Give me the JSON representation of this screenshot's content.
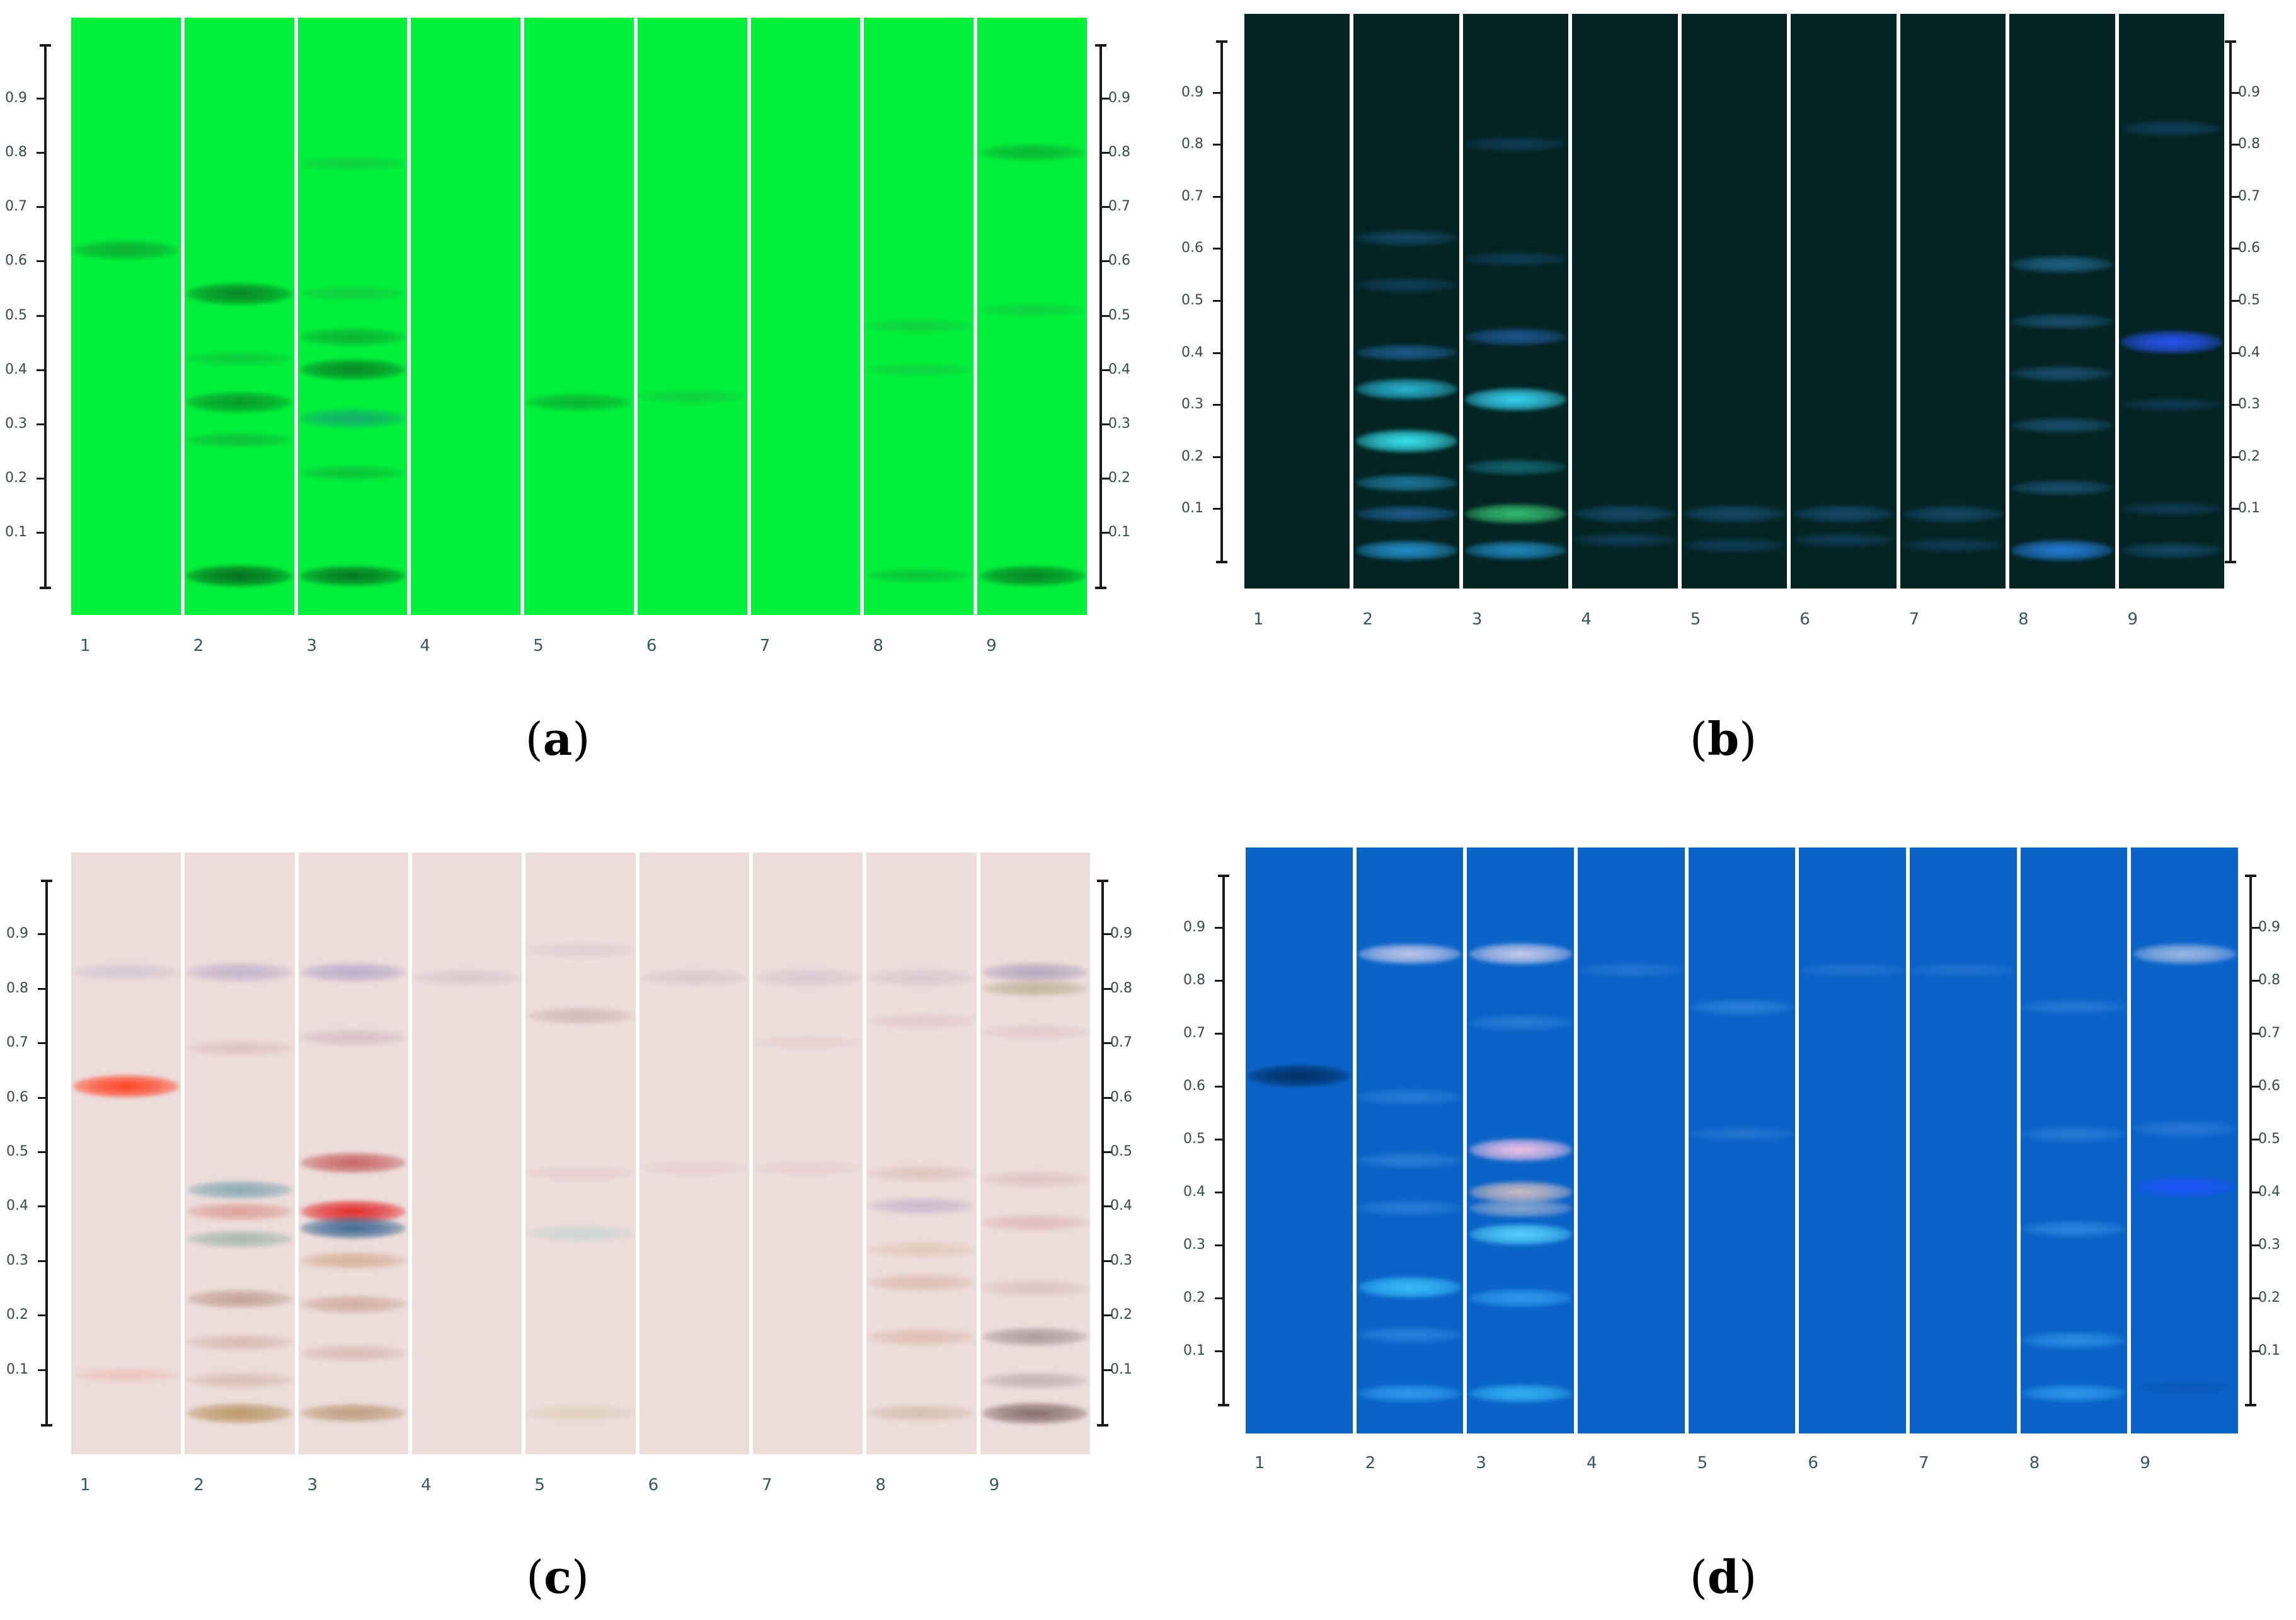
{
  "figure": {
    "lane_numbers": [
      "1",
      "2",
      "3",
      "4",
      "5",
      "6",
      "7",
      "8",
      "9"
    ],
    "rf_ticks": [
      "0.1",
      "0.2",
      "0.3",
      "0.4",
      "0.5",
      "0.6",
      "0.7",
      "0.8",
      "0.9"
    ],
    "panels": [
      {
        "id": "a",
        "caption_open": "(",
        "caption_letter": "a",
        "caption_close": ")",
        "plate_bg": "#00f03c",
        "band_mode": "dark",
        "lanes": [
          [
            {
              "rf": 0.62,
              "color": "#0f9a2e",
              "strength": 0.7
            }
          ],
          [
            {
              "rf": 0.54,
              "color": "#0a7a24",
              "strength": 0.95
            },
            {
              "rf": 0.42,
              "color": "#1aa83a",
              "strength": 0.3
            },
            {
              "rf": 0.34,
              "color": "#0a8a28",
              "strength": 0.85
            },
            {
              "rf": 0.27,
              "color": "#16a336",
              "strength": 0.45
            },
            {
              "rf": 0.02,
              "color": "#0a5a1c",
              "strength": 0.9
            }
          ],
          [
            {
              "rf": 0.78,
              "color": "#20b042",
              "strength": 0.3
            },
            {
              "rf": 0.54,
              "color": "#20b042",
              "strength": 0.35
            },
            {
              "rf": 0.46,
              "color": "#0f9a2e",
              "strength": 0.6
            },
            {
              "rf": 0.4,
              "color": "#0a7a24",
              "strength": 0.9
            },
            {
              "rf": 0.31,
              "color": "#1a9a7a",
              "strength": 0.7
            },
            {
              "rf": 0.21,
              "color": "#16a336",
              "strength": 0.4
            },
            {
              "rf": 0.02,
              "color": "#0a5a1c",
              "strength": 0.8
            }
          ],
          [],
          [
            {
              "rf": 0.34,
              "color": "#0f9a2e",
              "strength": 0.6
            }
          ],
          [
            {
              "rf": 0.35,
              "color": "#20b042",
              "strength": 0.3
            }
          ],
          [],
          [
            {
              "rf": 0.48,
              "color": "#20b042",
              "strength": 0.3
            },
            {
              "rf": 0.4,
              "color": "#20b042",
              "strength": 0.25
            },
            {
              "rf": 0.02,
              "color": "#169a34",
              "strength": 0.3
            }
          ],
          [
            {
              "rf": 0.8,
              "color": "#0f9a2e",
              "strength": 0.55
            },
            {
              "rf": 0.51,
              "color": "#20b042",
              "strength": 0.25
            },
            {
              "rf": 0.02,
              "color": "#0a6a20",
              "strength": 0.8
            }
          ]
        ]
      },
      {
        "id": "b",
        "caption_open": "(",
        "caption_letter": "b",
        "caption_close": ")",
        "plate_bg": "#032423",
        "band_mode": "light",
        "lanes": [
          [],
          [
            {
              "rf": 0.62,
              "color": "#1e5a8a",
              "strength": 0.5
            },
            {
              "rf": 0.53,
              "color": "#1a4f80",
              "strength": 0.4
            },
            {
              "rf": 0.4,
              "color": "#2a7bc8",
              "strength": 0.5
            },
            {
              "rf": 0.33,
              "color": "#2ec8e8",
              "strength": 0.9
            },
            {
              "rf": 0.23,
              "color": "#3af0ff",
              "strength": 1.0
            },
            {
              "rf": 0.15,
              "color": "#2a9ad0",
              "strength": 0.6
            },
            {
              "rf": 0.09,
              "color": "#2a7bc8",
              "strength": 0.5
            },
            {
              "rf": 0.02,
              "color": "#2aa8f0",
              "strength": 0.8
            }
          ],
          [
            {
              "rf": 0.8,
              "color": "#1a4f80",
              "strength": 0.35
            },
            {
              "rf": 0.58,
              "color": "#1a4f80",
              "strength": 0.35
            },
            {
              "rf": 0.43,
              "color": "#2a6ac0",
              "strength": 0.6
            },
            {
              "rf": 0.31,
              "color": "#3ae0ff",
              "strength": 1.0
            },
            {
              "rf": 0.18,
              "color": "#1a8a9a",
              "strength": 0.5
            },
            {
              "rf": 0.09,
              "color": "#40e080",
              "strength": 0.8
            },
            {
              "rf": 0.02,
              "color": "#2aa8f0",
              "strength": 0.7
            }
          ],
          [
            {
              "rf": 0.09,
              "color": "#1e5a8a",
              "strength": 0.6
            },
            {
              "rf": 0.04,
              "color": "#1a4f80",
              "strength": 0.4
            }
          ],
          [
            {
              "rf": 0.09,
              "color": "#1e5a8a",
              "strength": 0.6
            },
            {
              "rf": 0.03,
              "color": "#1a4f80",
              "strength": 0.4
            }
          ],
          [
            {
              "rf": 0.09,
              "color": "#1e5a8a",
              "strength": 0.6
            },
            {
              "rf": 0.04,
              "color": "#1a4f80",
              "strength": 0.4
            }
          ],
          [
            {
              "rf": 0.09,
              "color": "#1e5a8a",
              "strength": 0.55
            },
            {
              "rf": 0.03,
              "color": "#1a4f80",
              "strength": 0.35
            }
          ],
          [
            {
              "rf": 0.57,
              "color": "#2a7bb0",
              "strength": 0.6
            },
            {
              "rf": 0.46,
              "color": "#2a6aa0",
              "strength": 0.45
            },
            {
              "rf": 0.36,
              "color": "#2a6aa0",
              "strength": 0.45
            },
            {
              "rf": 0.26,
              "color": "#2a6aa0",
              "strength": 0.45
            },
            {
              "rf": 0.14,
              "color": "#2a6aa0",
              "strength": 0.45
            },
            {
              "rf": 0.02,
              "color": "#2a88f0",
              "strength": 0.9
            }
          ],
          [
            {
              "rf": 0.83,
              "color": "#1a4f80",
              "strength": 0.45
            },
            {
              "rf": 0.42,
              "color": "#2a58ff",
              "strength": 1.0
            },
            {
              "rf": 0.3,
              "color": "#1a4f80",
              "strength": 0.3
            },
            {
              "rf": 0.1,
              "color": "#1a4f80",
              "strength": 0.35
            },
            {
              "rf": 0.02,
              "color": "#1e5a8a",
              "strength": 0.5
            }
          ]
        ]
      },
      {
        "id": "c",
        "caption_open": "(",
        "caption_letter": "c",
        "caption_close": ")",
        "plate_bg": "#ecdcda",
        "band_mode": "dark",
        "lanes": [
          [
            {
              "rf": 0.83,
              "color": "#c8bcd0",
              "strength": 0.5
            },
            {
              "rf": 0.62,
              "color": "#ff3818",
              "strength": 1.0
            },
            {
              "rf": 0.09,
              "color": "#f0b0a0",
              "strength": 0.3
            }
          ],
          [
            {
              "rf": 0.83,
              "color": "#b8a8c8",
              "strength": 0.7
            },
            {
              "rf": 0.69,
              "color": "#d8b0b0",
              "strength": 0.4
            },
            {
              "rf": 0.43,
              "color": "#6a9aaa",
              "strength": 0.7
            },
            {
              "rf": 0.39,
              "color": "#d88880",
              "strength": 0.6
            },
            {
              "rf": 0.34,
              "color": "#8aaa9a",
              "strength": 0.6
            },
            {
              "rf": 0.23,
              "color": "#b89080",
              "strength": 0.7
            },
            {
              "rf": 0.15,
              "color": "#d0a8a0",
              "strength": 0.5
            },
            {
              "rf": 0.08,
              "color": "#d0b0a0",
              "strength": 0.5
            },
            {
              "rf": 0.02,
              "color": "#b08850",
              "strength": 0.8
            }
          ],
          [
            {
              "rf": 0.83,
              "color": "#b0a0c8",
              "strength": 0.75
            },
            {
              "rf": 0.71,
              "color": "#c8b0c0",
              "strength": 0.5
            },
            {
              "rf": 0.48,
              "color": "#c05050",
              "strength": 0.85
            },
            {
              "rf": 0.39,
              "color": "#e02020",
              "strength": 1.0
            },
            {
              "rf": 0.36,
              "color": "#2a5a8a",
              "strength": 0.9
            },
            {
              "rf": 0.3,
              "color": "#d0a080",
              "strength": 0.6
            },
            {
              "rf": 0.22,
              "color": "#c89888",
              "strength": 0.6
            },
            {
              "rf": 0.13,
              "color": "#d0a8a0",
              "strength": 0.5
            },
            {
              "rf": 0.02,
              "color": "#b08860",
              "strength": 0.7
            }
          ],
          [
            {
              "rf": 0.82,
              "color": "#d0c0d0",
              "strength": 0.5
            }
          ],
          [
            {
              "rf": 0.87,
              "color": "#d8c8d0",
              "strength": 0.45
            },
            {
              "rf": 0.75,
              "color": "#c8a8a8",
              "strength": 0.55
            },
            {
              "rf": 0.46,
              "color": "#e0c8c8",
              "strength": 0.4
            },
            {
              "rf": 0.35,
              "color": "#b8d0d0",
              "strength": 0.45
            },
            {
              "rf": 0.02,
              "color": "#d8c8a8",
              "strength": 0.4
            }
          ],
          [
            {
              "rf": 0.82,
              "color": "#d0c0d0",
              "strength": 0.5
            },
            {
              "rf": 0.47,
              "color": "#e0c8c8",
              "strength": 0.35
            }
          ],
          [
            {
              "rf": 0.82,
              "color": "#d0c0d0",
              "strength": 0.55
            },
            {
              "rf": 0.7,
              "color": "#e0c8c8",
              "strength": 0.3
            },
            {
              "rf": 0.47,
              "color": "#e0c8c8",
              "strength": 0.35
            }
          ],
          [
            {
              "rf": 0.82,
              "color": "#d0c0d0",
              "strength": 0.55
            },
            {
              "rf": 0.74,
              "color": "#d8c0c0",
              "strength": 0.4
            },
            {
              "rf": 0.46,
              "color": "#d8b8b0",
              "strength": 0.5
            },
            {
              "rf": 0.4,
              "color": "#b8a8c8",
              "strength": 0.55
            },
            {
              "rf": 0.32,
              "color": "#e0c0a8",
              "strength": 0.5
            },
            {
              "rf": 0.26,
              "color": "#d8b0a0",
              "strength": 0.6
            },
            {
              "rf": 0.16,
              "color": "#d8b0a0",
              "strength": 0.55
            },
            {
              "rf": 0.02,
              "color": "#c8b098",
              "strength": 0.5
            }
          ],
          [
            {
              "rf": 0.83,
              "color": "#a89ab8",
              "strength": 0.75
            },
            {
              "rf": 0.8,
              "color": "#a8a078",
              "strength": 0.5
            },
            {
              "rf": 0.72,
              "color": "#d8c0c0",
              "strength": 0.4
            },
            {
              "rf": 0.45,
              "color": "#d8b8b8",
              "strength": 0.5
            },
            {
              "rf": 0.37,
              "color": "#d8a8a8",
              "strength": 0.5
            },
            {
              "rf": 0.25,
              "color": "#d0b8b0",
              "strength": 0.5
            },
            {
              "rf": 0.16,
              "color": "#9a8888",
              "strength": 0.7
            },
            {
              "rf": 0.08,
              "color": "#b0a0a0",
              "strength": 0.55
            },
            {
              "rf": 0.02,
              "color": "#7a6060",
              "strength": 0.9
            }
          ]
        ]
      },
      {
        "id": "d",
        "caption_open": "(",
        "caption_letter": "d",
        "caption_close": ")",
        "plate_bg": "#0a64c8",
        "band_mode": "light",
        "lanes": [
          [
            {
              "rf": 0.62,
              "color": "#022a5a",
              "strength": 0.95
            }
          ],
          [
            {
              "rf": 0.85,
              "color": "#e0d8f0",
              "strength": 0.85
            },
            {
              "rf": 0.58,
              "color": "#3a8ae0",
              "strength": 0.45
            },
            {
              "rf": 0.46,
              "color": "#3a8ae0",
              "strength": 0.5
            },
            {
              "rf": 0.37,
              "color": "#3a8ae0",
              "strength": 0.45
            },
            {
              "rf": 0.22,
              "color": "#40c8ff",
              "strength": 0.9
            },
            {
              "rf": 0.13,
              "color": "#3a90e8",
              "strength": 0.5
            },
            {
              "rf": 0.02,
              "color": "#40b0ff",
              "strength": 0.6
            }
          ],
          [
            {
              "rf": 0.85,
              "color": "#e0d8f0",
              "strength": 0.9
            },
            {
              "rf": 0.72,
              "color": "#3a8ae0",
              "strength": 0.45
            },
            {
              "rf": 0.48,
              "color": "#ffc8e8",
              "strength": 1.0
            },
            {
              "rf": 0.4,
              "color": "#e8c8c0",
              "strength": 0.9
            },
            {
              "rf": 0.37,
              "color": "#b0b8d0",
              "strength": 0.7
            },
            {
              "rf": 0.32,
              "color": "#60e0ff",
              "strength": 0.9
            },
            {
              "rf": 0.2,
              "color": "#40b0ff",
              "strength": 0.6
            },
            {
              "rf": 0.02,
              "color": "#40c8ff",
              "strength": 0.7
            }
          ],
          [
            {
              "rf": 0.82,
              "color": "#3a80d8",
              "strength": 0.35
            }
          ],
          [
            {
              "rf": 0.75,
              "color": "#3a90e0",
              "strength": 0.5
            },
            {
              "rf": 0.51,
              "color": "#3a80d8",
              "strength": 0.35
            }
          ],
          [
            {
              "rf": 0.82,
              "color": "#3a80d8",
              "strength": 0.3
            }
          ],
          [
            {
              "rf": 0.82,
              "color": "#3a80d8",
              "strength": 0.3
            }
          ],
          [
            {
              "rf": 0.75,
              "color": "#3a88e0",
              "strength": 0.4
            },
            {
              "rf": 0.51,
              "color": "#3a88e0",
              "strength": 0.45
            },
            {
              "rf": 0.33,
              "color": "#3a98e8",
              "strength": 0.5
            },
            {
              "rf": 0.12,
              "color": "#3aa0f0",
              "strength": 0.55
            },
            {
              "rf": 0.02,
              "color": "#40b0ff",
              "strength": 0.55
            }
          ],
          [
            {
              "rf": 0.85,
              "color": "#b8c8e8",
              "strength": 0.85
            },
            {
              "rf": 0.52,
              "color": "#3a80e0",
              "strength": 0.5
            },
            {
              "rf": 0.41,
              "color": "#2050ff",
              "strength": 0.9
            },
            {
              "rf": 0.03,
              "color": "#0a50b0",
              "strength": 0.4
            }
          ]
        ]
      }
    ]
  }
}
